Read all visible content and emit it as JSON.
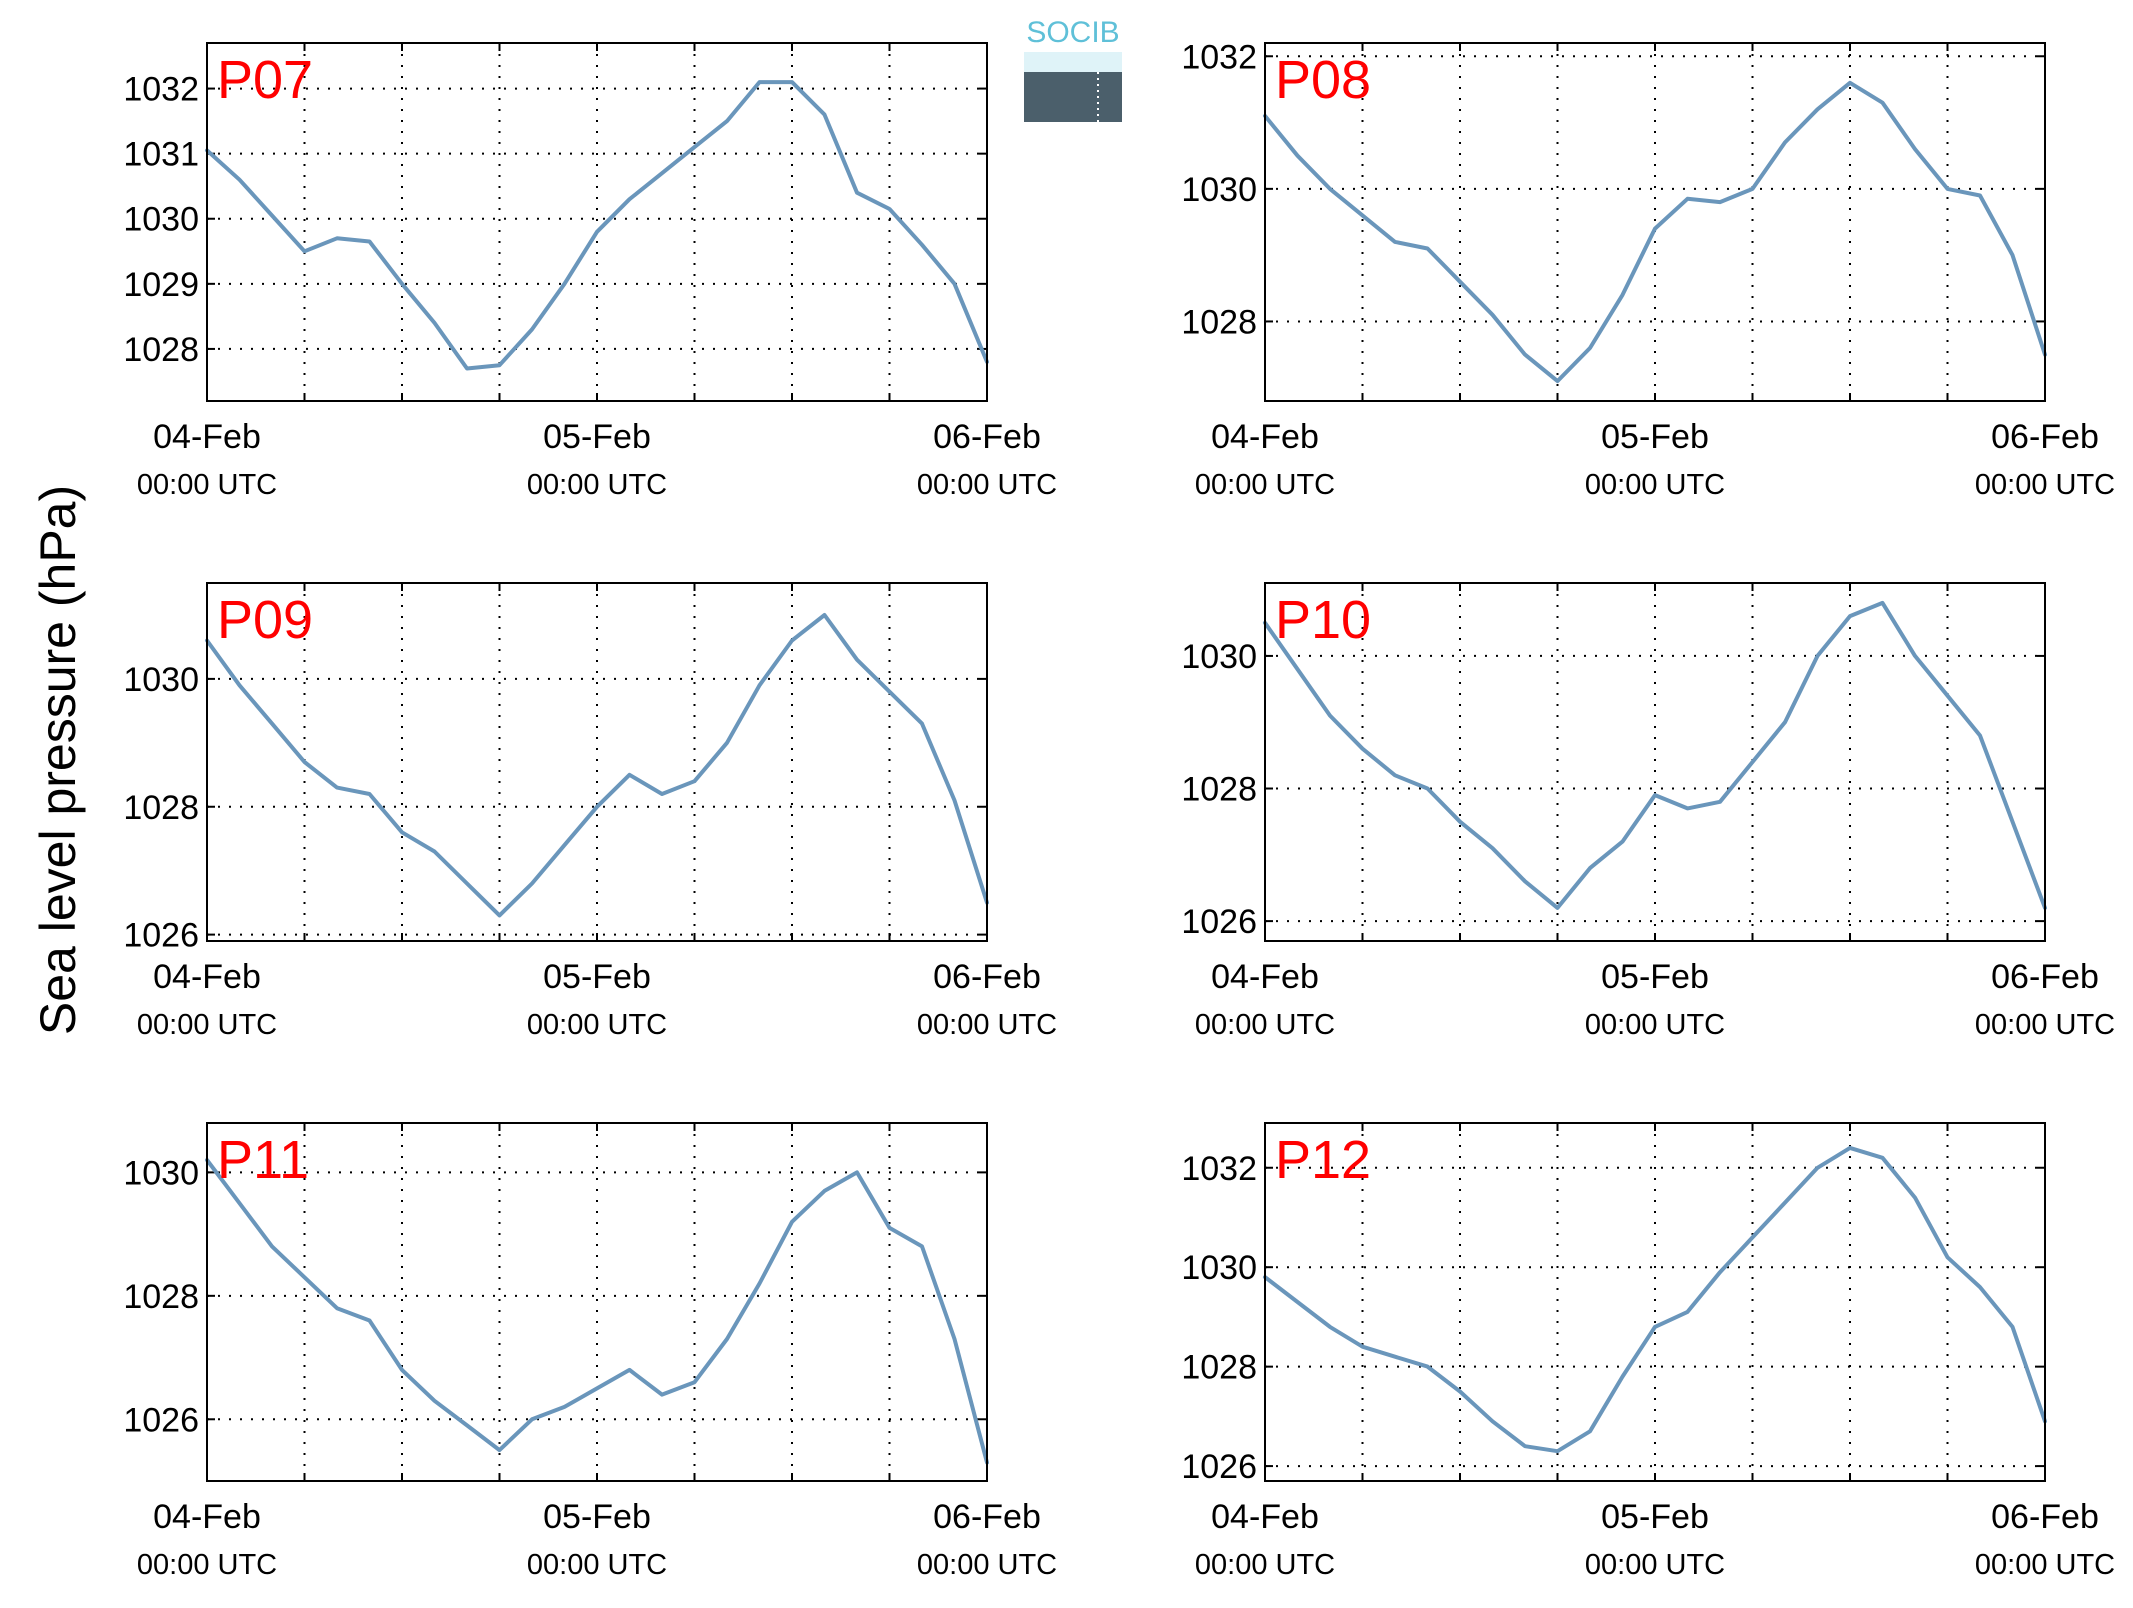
{
  "figure": {
    "ylabel": "Sea level pressure (hPa)",
    "logo_text": "SOCIB",
    "colors": {
      "line": "#6a96bb",
      "station_label": "#ff0000",
      "grid": "#000000"
    }
  },
  "chart_data": [
    {
      "type": "line",
      "station": "P07",
      "ylim": [
        1027.2,
        1032.7
      ],
      "yticks": [
        1028,
        1029,
        1030,
        1031,
        1032
      ],
      "xticks": [
        {
          "date": "04-Feb",
          "time": "00:00 UTC"
        },
        {
          "date": "05-Feb",
          "time": "00:00 UTC"
        },
        {
          "date": "06-Feb",
          "time": "00:00 UTC"
        }
      ],
      "grid": true,
      "x_hours": [
        0,
        2,
        4,
        6,
        8,
        10,
        12,
        14,
        16,
        18,
        20,
        22,
        24,
        26,
        28,
        30,
        32,
        34,
        36,
        38,
        40,
        42,
        44,
        46,
        48
      ],
      "values": [
        1031.05,
        1030.6,
        1030.05,
        1029.5,
        1029.7,
        1029.65,
        1029.0,
        1028.4,
        1027.7,
        1027.75,
        1028.3,
        1029.0,
        1029.8,
        1030.3,
        1030.7,
        1031.1,
        1031.5,
        1032.1,
        1032.1,
        1031.6,
        1030.4,
        1030.15,
        1029.6,
        1029.0,
        1027.8
      ]
    },
    {
      "type": "line",
      "station": "P08",
      "ylim": [
        1026.8,
        1032.2
      ],
      "yticks": [
        1028,
        1030,
        1032
      ],
      "xticks": [
        {
          "date": "04-Feb",
          "time": "00:00 UTC"
        },
        {
          "date": "05-Feb",
          "time": "00:00 UTC"
        },
        {
          "date": "06-Feb",
          "time": "00:00 UTC"
        }
      ],
      "grid": true,
      "x_hours": [
        0,
        2,
        4,
        6,
        8,
        10,
        12,
        14,
        16,
        18,
        20,
        22,
        24,
        26,
        28,
        30,
        32,
        34,
        36,
        38,
        40,
        42,
        44,
        46,
        48
      ],
      "values": [
        1031.1,
        1030.5,
        1030.0,
        1029.6,
        1029.2,
        1029.1,
        1028.6,
        1028.1,
        1027.5,
        1027.1,
        1027.6,
        1028.4,
        1029.4,
        1029.85,
        1029.8,
        1030.0,
        1030.7,
        1031.2,
        1031.6,
        1031.3,
        1030.6,
        1030.0,
        1029.9,
        1029.0,
        1027.5
      ]
    },
    {
      "type": "line",
      "station": "P09",
      "ylim": [
        1025.9,
        1031.5
      ],
      "yticks": [
        1026,
        1028,
        1030
      ],
      "xticks": [
        {
          "date": "04-Feb",
          "time": "00:00 UTC"
        },
        {
          "date": "05-Feb",
          "time": "00:00 UTC"
        },
        {
          "date": "06-Feb",
          "time": "00:00 UTC"
        }
      ],
      "grid": true,
      "x_hours": [
        0,
        2,
        4,
        6,
        8,
        10,
        12,
        14,
        16,
        18,
        20,
        22,
        24,
        26,
        28,
        30,
        32,
        34,
        36,
        38,
        40,
        42,
        44,
        46,
        48
      ],
      "values": [
        1030.6,
        1029.9,
        1029.3,
        1028.7,
        1028.3,
        1028.2,
        1027.6,
        1027.3,
        1026.8,
        1026.3,
        1026.8,
        1027.4,
        1028.0,
        1028.5,
        1028.2,
        1028.4,
        1029.0,
        1029.9,
        1030.6,
        1031.0,
        1030.3,
        1029.8,
        1029.3,
        1028.1,
        1026.5
      ]
    },
    {
      "type": "line",
      "station": "P10",
      "ylim": [
        1025.7,
        1031.1
      ],
      "yticks": [
        1026,
        1028,
        1030
      ],
      "xticks": [
        {
          "date": "04-Feb",
          "time": "00:00 UTC"
        },
        {
          "date": "05-Feb",
          "time": "00:00 UTC"
        },
        {
          "date": "06-Feb",
          "time": "00:00 UTC"
        }
      ],
      "grid": true,
      "x_hours": [
        0,
        2,
        4,
        6,
        8,
        10,
        12,
        14,
        16,
        18,
        20,
        22,
        24,
        26,
        28,
        30,
        32,
        34,
        36,
        38,
        40,
        42,
        44,
        46,
        48
      ],
      "values": [
        1030.5,
        1029.8,
        1029.1,
        1028.6,
        1028.2,
        1028.0,
        1027.5,
        1027.1,
        1026.6,
        1026.2,
        1026.8,
        1027.2,
        1027.9,
        1027.7,
        1027.8,
        1028.4,
        1029.0,
        1030.0,
        1030.6,
        1030.8,
        1030.0,
        1029.4,
        1028.8,
        1027.5,
        1026.2
      ]
    },
    {
      "type": "line",
      "station": "P11",
      "ylim": [
        1025.0,
        1030.8
      ],
      "yticks": [
        1026,
        1028,
        1030
      ],
      "xticks": [
        {
          "date": "04-Feb",
          "time": "00:00 UTC"
        },
        {
          "date": "05-Feb",
          "time": "00:00 UTC"
        },
        {
          "date": "06-Feb",
          "time": "00:00 UTC"
        }
      ],
      "grid": true,
      "x_hours": [
        0,
        2,
        4,
        6,
        8,
        10,
        12,
        14,
        16,
        18,
        20,
        22,
        24,
        26,
        28,
        30,
        32,
        34,
        36,
        38,
        40,
        42,
        44,
        46,
        48
      ],
      "values": [
        1030.2,
        1029.5,
        1028.8,
        1028.3,
        1027.8,
        1027.6,
        1026.8,
        1026.3,
        1025.9,
        1025.5,
        1026.0,
        1026.2,
        1026.5,
        1026.8,
        1026.4,
        1026.6,
        1027.3,
        1028.2,
        1029.2,
        1029.7,
        1030.0,
        1029.1,
        1028.8,
        1027.3,
        1025.3
      ]
    },
    {
      "type": "line",
      "station": "P12",
      "ylim": [
        1025.7,
        1032.9
      ],
      "yticks": [
        1026,
        1028,
        1030,
        1032
      ],
      "xticks": [
        {
          "date": "04-Feb",
          "time": "00:00 UTC"
        },
        {
          "date": "05-Feb",
          "time": "00:00 UTC"
        },
        {
          "date": "06-Feb",
          "time": "00:00 UTC"
        }
      ],
      "grid": true,
      "x_hours": [
        0,
        2,
        4,
        6,
        8,
        10,
        12,
        14,
        16,
        18,
        20,
        22,
        24,
        26,
        28,
        30,
        32,
        34,
        36,
        38,
        40,
        42,
        44,
        46,
        48
      ],
      "values": [
        1029.8,
        1029.3,
        1028.8,
        1028.4,
        1028.2,
        1028.0,
        1027.5,
        1026.9,
        1026.4,
        1026.3,
        1026.7,
        1027.8,
        1028.8,
        1029.1,
        1029.9,
        1030.6,
        1031.3,
        1032.0,
        1032.4,
        1032.2,
        1031.4,
        1030.2,
        1029.6,
        1028.8,
        1026.9
      ]
    }
  ]
}
